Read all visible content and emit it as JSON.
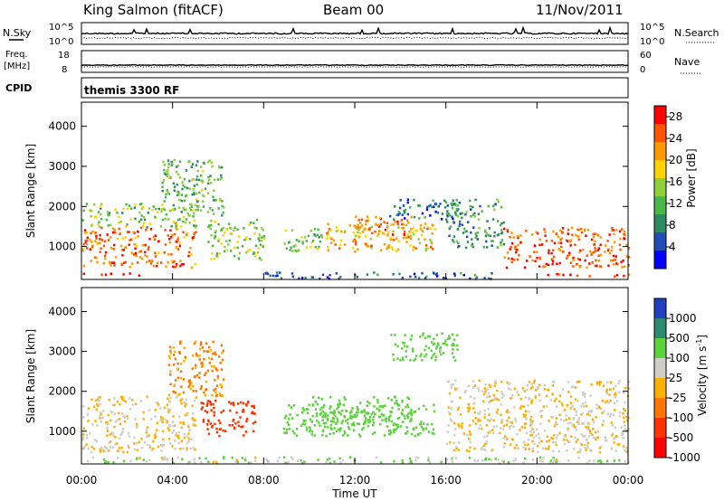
{
  "header": {
    "station": "King Salmon (fitACF)",
    "beam": "Beam 00",
    "date": "11/Nov/2011"
  },
  "panels": {
    "nsky": {
      "left_label": "N.Sky",
      "left_ticks": [
        "10^5",
        "10^0"
      ],
      "right_ticks": [
        "10^5",
        "10^0"
      ],
      "right_label": "N.Search"
    },
    "freq": {
      "left_label_1": "Freq.",
      "left_label_2": "[MHz]",
      "left_ticks": [
        "18",
        "8"
      ],
      "right_ticks": [
        "60",
        "0"
      ],
      "right_label": "Nave"
    },
    "cpid": {
      "left_label": "CPID",
      "text": "themis 3300 RF"
    }
  },
  "chart_data": [
    {
      "type": "heatmap",
      "name": "power",
      "ylabel": "Slant Range [km]",
      "xlabel": "Time UT",
      "xlim": [
        "00:00",
        "24:00"
      ],
      "x_ticks": [
        "00:00",
        "04:00",
        "08:00",
        "12:00",
        "16:00",
        "20:00",
        "00:00"
      ],
      "ylim": [
        180,
        4600
      ],
      "y_ticks": [
        1000,
        2000,
        3000,
        4000
      ],
      "colorbar": {
        "label": "Power [dB]",
        "ticks": [
          4,
          8,
          12,
          16,
          20,
          24,
          28
        ],
        "range": [
          0,
          30
        ],
        "colors": [
          "#0000ff",
          "#1f4fb5",
          "#2f8a63",
          "#4cb54b",
          "#8ed13a",
          "#ffd400",
          "#ff9900",
          "#ff5500",
          "#ff0000"
        ]
      },
      "regions": [
        {
          "t": [
            0.0,
            5.0
          ],
          "r": [
            500,
            1500
          ],
          "level": 24
        },
        {
          "t": [
            0.0,
            5.0
          ],
          "r": [
            1500,
            2100
          ],
          "level": 14
        },
        {
          "t": [
            0.0,
            2.5
          ],
          "r": [
            280,
            360
          ],
          "level": 26
        },
        {
          "t": [
            3.5,
            6.2
          ],
          "r": [
            1800,
            3200
          ],
          "level": 12
        },
        {
          "t": [
            5.5,
            8.0
          ],
          "r": [
            700,
            1700
          ],
          "level": 15
        },
        {
          "t": [
            8.8,
            10.5
          ],
          "r": [
            900,
            1500
          ],
          "level": 13
        },
        {
          "t": [
            10.5,
            15.5
          ],
          "r": [
            900,
            1600
          ],
          "level": 20
        },
        {
          "t": [
            12.0,
            14.5
          ],
          "r": [
            1300,
            1800
          ],
          "level": 24
        },
        {
          "t": [
            13.5,
            16.5
          ],
          "r": [
            1700,
            2200
          ],
          "level": 7
        },
        {
          "t": [
            16.0,
            18.5
          ],
          "r": [
            1000,
            2200
          ],
          "level": 10
        },
        {
          "t": [
            18.5,
            24.0
          ],
          "r": [
            500,
            1500
          ],
          "level": 25
        },
        {
          "t": [
            20.0,
            24.0
          ],
          "r": [
            280,
            360
          ],
          "level": 26
        },
        {
          "t": [
            8.0,
            18.0
          ],
          "r": [
            220,
            380
          ],
          "level": 6
        }
      ]
    },
    {
      "type": "heatmap",
      "name": "velocity",
      "ylabel": "Slant Range [km]",
      "xlabel": "Time UT",
      "xlim": [
        "00:00",
        "24:00"
      ],
      "x_ticks": [
        "00:00",
        "04:00",
        "08:00",
        "12:00",
        "16:00",
        "20:00",
        "00:00"
      ],
      "ylim": [
        180,
        4600
      ],
      "y_ticks": [
        1000,
        2000,
        3000,
        4000
      ],
      "colorbar": {
        "label": "Velocity [m s^-1]",
        "ticks": [
          1000,
          500,
          100,
          25,
          -25,
          -100,
          -500,
          -1000
        ],
        "colors": [
          "#2040c0",
          "#2d8a70",
          "#5cd23c",
          "#cfcfc8",
          "#ffb000",
          "#ff7700",
          "#ff3300",
          "#ff0000"
        ]
      },
      "regions": [
        {
          "t": [
            0.0,
            5.0
          ],
          "r": [
            500,
            1900
          ],
          "level": 0
        },
        {
          "t": [
            5.2,
            7.6
          ],
          "r": [
            900,
            1800
          ],
          "level": -600
        },
        {
          "t": [
            8.8,
            15.5
          ],
          "r": [
            900,
            1700
          ],
          "level": 200
        },
        {
          "t": [
            10.0,
            14.5
          ],
          "r": [
            1200,
            1900
          ],
          "level": 150
        },
        {
          "t": [
            16.0,
            24.0
          ],
          "r": [
            500,
            2300
          ],
          "level": 0
        },
        {
          "t": [
            3.8,
            6.2
          ],
          "r": [
            1900,
            3300
          ],
          "level": -80
        },
        {
          "t": [
            13.5,
            16.5
          ],
          "r": [
            2800,
            3500
          ],
          "level": 120
        },
        {
          "t": [
            0.0,
            24.0
          ],
          "r": [
            220,
            380
          ],
          "level": 50
        }
      ]
    }
  ]
}
